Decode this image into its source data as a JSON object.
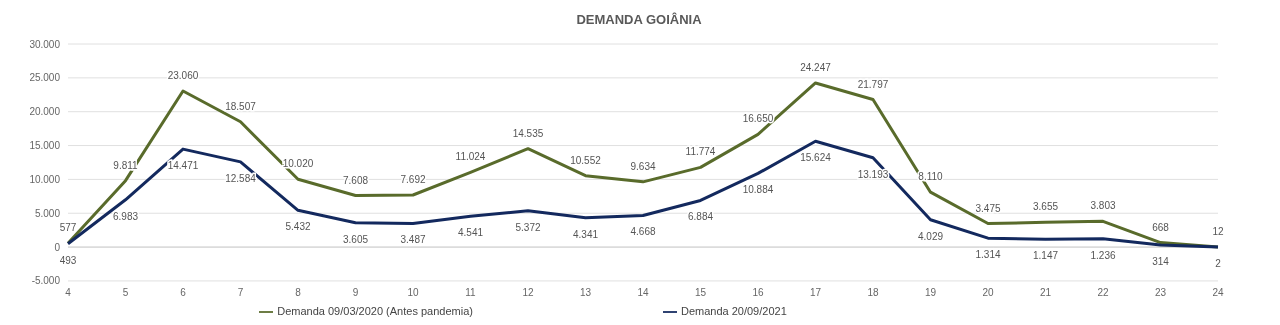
{
  "chart_data": {
    "type": "line",
    "title": "DEMANDA GOIÂNIA",
    "categories": [
      "4",
      "5",
      "6",
      "7",
      "8",
      "9",
      "10",
      "11",
      "12",
      "13",
      "14",
      "15",
      "16",
      "17",
      "18",
      "19",
      "20",
      "21",
      "22",
      "23",
      "24"
    ],
    "series": [
      {
        "name": "Demanda 09/03/2020 (Antes pandemia)",
        "color": "#596b2b",
        "values": [
          577,
          9811,
          23060,
          18507,
          10020,
          7608,
          7692,
          11024,
          14535,
          10552,
          9634,
          11774,
          16650,
          24247,
          21797,
          8110,
          3475,
          3655,
          3803,
          668,
          12
        ],
        "value_labels": [
          "577",
          "9.811",
          "23.060",
          "18.507",
          "10.020",
          "7.608",
          "7.692",
          "11.024",
          "14.535",
          "10.552",
          "9.634",
          "11.774",
          "16.650",
          "24.247",
          "21.797",
          "8.110",
          "3.475",
          "3.655",
          "3.803",
          "668",
          "12"
        ]
      },
      {
        "name": "Demanda 20/09/2021",
        "color": "#13295e",
        "values": [
          493,
          6983,
          14471,
          12584,
          5432,
          3605,
          3487,
          4541,
          5372,
          4341,
          4668,
          6884,
          10884,
          15624,
          13193,
          4029,
          1314,
          1147,
          1236,
          314,
          2
        ],
        "value_labels": [
          "493",
          "6.983",
          "14.471",
          "12.584",
          "5.432",
          "3.605",
          "3.487",
          "4.541",
          "5.372",
          "4.341",
          "4.668",
          "6.884",
          "10.884",
          "15.624",
          "13.193",
          "4.029",
          "1.314",
          "1.147",
          "1.236",
          "314",
          "2"
        ]
      }
    ],
    "ylim": [
      -5000,
      30000
    ],
    "yticks": [
      {
        "value": -5000,
        "label": "-5.000"
      },
      {
        "value": 0,
        "label": "0"
      },
      {
        "value": 5000,
        "label": "5.000"
      },
      {
        "value": 10000,
        "label": "10.000"
      },
      {
        "value": 15000,
        "label": "15.000"
      },
      {
        "value": 20000,
        "label": "20.000"
      },
      {
        "value": 25000,
        "label": "25.000"
      },
      {
        "value": 30000,
        "label": "30.000"
      }
    ],
    "grid": "y",
    "legend": "bottom",
    "marker": "none",
    "line_style": "solid"
  }
}
